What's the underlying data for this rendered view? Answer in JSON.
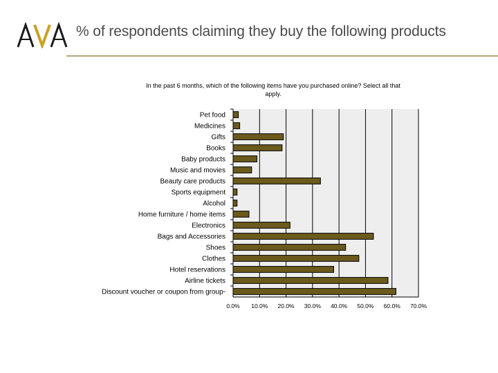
{
  "header": {
    "logo_text": "AVA",
    "title": "% of respondents claiming they buy the following products"
  },
  "colors": {
    "bar_fill": "#6b5a1c",
    "bar_stroke": "#000000",
    "plot_bg": "#eeeeee",
    "accent": "#c9a227",
    "rule": "#b5a57a"
  },
  "chart_data": {
    "type": "bar",
    "orientation": "horizontal",
    "title": "In the past 6 months, which of the following items have you purchased online? Select all that apply.",
    "categories": [
      "Pet food",
      "Medicines",
      "Gifts",
      "Books",
      "Baby products",
      "Music and movies",
      "Beauty care products",
      "Sports equipment",
      "Alcohol",
      "Home furniture / home items",
      "Electronics",
      "Bags and Accessories",
      "Shoes",
      "Clothes",
      "Hotel reservations",
      "Airline tickets",
      "Discount voucher or coupon from group-"
    ],
    "values": [
      2.0,
      2.5,
      19.0,
      18.5,
      9.0,
      7.0,
      33.0,
      1.5,
      1.5,
      6.0,
      21.5,
      53.0,
      42.5,
      47.5,
      38.0,
      58.5,
      61.5
    ],
    "xlim": [
      0,
      70
    ],
    "xticks": [
      "0.0%",
      "10.0%",
      "20.0%",
      "30.0%",
      "40.0%",
      "50.0%",
      "60.0%",
      "70.0%"
    ],
    "grid": true,
    "legend": "none"
  }
}
